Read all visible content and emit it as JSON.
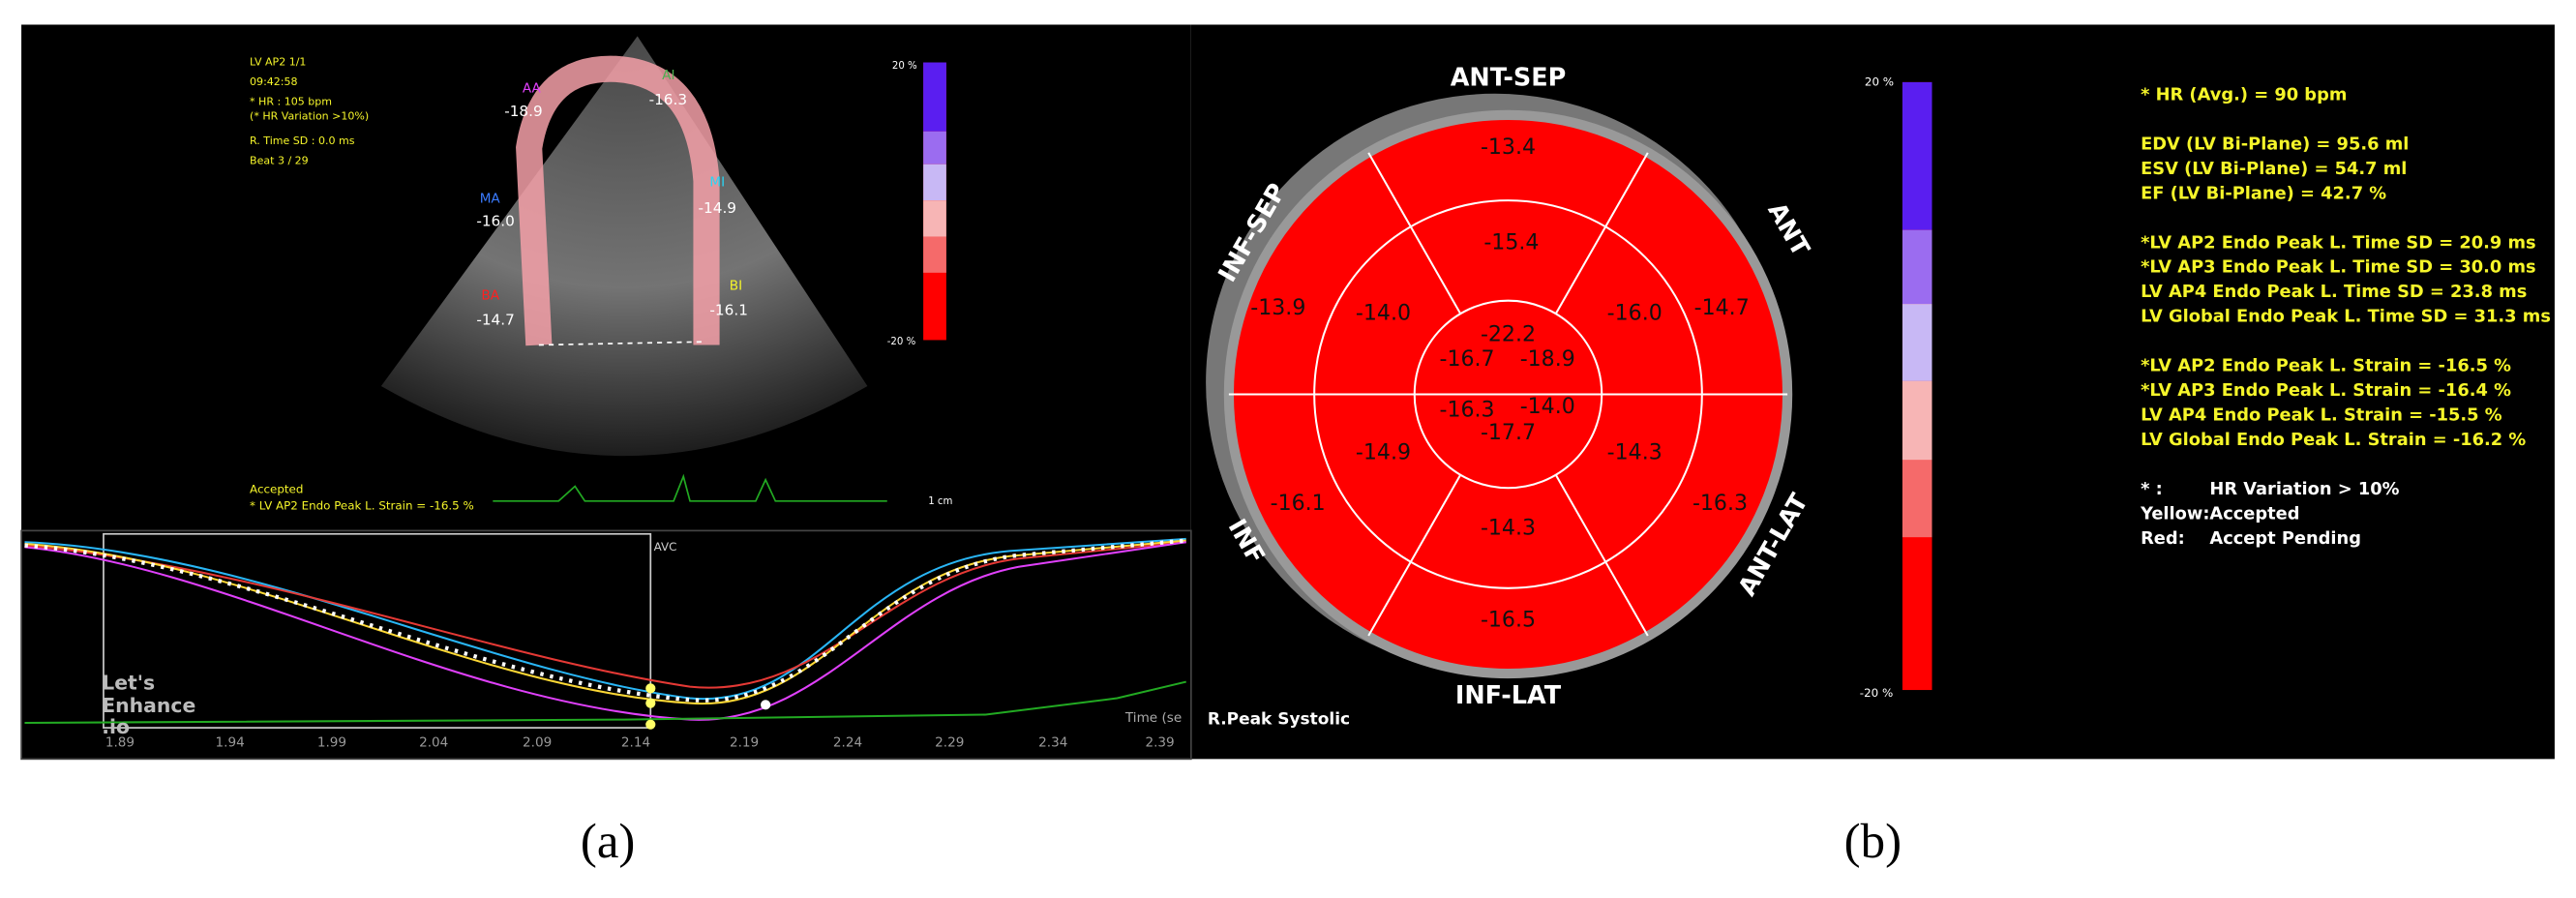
{
  "panel_a": {
    "header": [
      "LV AP2  1/1",
      "09:42:58",
      "* HR : 105 bpm",
      "(* HR Variation >10%)",
      "R. Time SD : 0.0 ms",
      "Beat 3 / 29"
    ],
    "segments": [
      {
        "name": "AA",
        "value": "-18.9"
      },
      {
        "name": "AI",
        "value": "-16.3"
      },
      {
        "name": "MI",
        "value": "-14.9"
      },
      {
        "name": "MA",
        "value": "-16.0"
      },
      {
        "name": "BA",
        "value": "-14.7"
      },
      {
        "name": "BI",
        "value": "-16.1"
      }
    ],
    "colorbar": {
      "top": "20 %",
      "bottom": "-20 %"
    },
    "scale_label": "1 cm",
    "status": "Accepted",
    "strain": "* LV AP2 Endo Peak L. Strain = -16.5 %",
    "marker": "AVC",
    "x_axis_title": "Time (se",
    "x_ticks": [
      "1.89",
      "1.94",
      "1.99",
      "2.04",
      "2.09",
      "2.14",
      "2.19",
      "2.24",
      "2.29",
      "2.34",
      "2.39"
    ],
    "watermark": [
      "Let's",
      "Enhance",
      ".io"
    ]
  },
  "panel_b": {
    "walls": [
      "ANT-SEP",
      "ANT",
      "ANT-LAT",
      "INF-LAT",
      "INF",
      "INF-SEP"
    ],
    "basal": [
      "-13.4",
      "-14.7",
      "-16.3",
      "-16.5",
      "-16.1",
      "-13.9"
    ],
    "mid": [
      "-15.4",
      "-16.0",
      "-14.3",
      "-14.3",
      "-14.9",
      "-14.0"
    ],
    "apical": [
      "-22.2",
      "-18.9",
      "-14.0",
      "-17.7",
      "-16.3",
      "-16.7"
    ],
    "colorbar": {
      "top": "20 %",
      "bottom": "-20 %"
    },
    "view": "R.Peak Systolic",
    "summary": [
      "* HR (Avg.) = 90 bpm",
      "EDV (LV Bi-Plane) = 95.6 ml",
      "ESV (LV Bi-Plane) = 54.7 ml",
      "EF (LV Bi-Plane) = 42.7 %",
      "*LV AP2 Endo Peak L. Time SD = 20.9 ms",
      "*LV AP3 Endo Peak L. Time SD = 30.0 ms",
      "LV AP4 Endo Peak L. Time SD = 23.8 ms",
      "LV Global Endo Peak L. Time SD = 31.3 ms",
      "*LV AP2 Endo Peak L. Strain = -16.5 %",
      "*LV AP3 Endo Peak L. Strain = -16.4 %",
      "LV AP4 Endo Peak L. Strain = -15.5 %",
      "LV Global Endo Peak L. Strain = -16.2 %"
    ],
    "legend": [
      {
        "key": "* :",
        "text": "HR Variation > 10%"
      },
      {
        "key": "Yellow:",
        "text": "Accepted"
      },
      {
        "key": "Red:",
        "text": "Accept Pending"
      }
    ]
  },
  "captions": [
    "(a)",
    "(b)"
  ]
}
